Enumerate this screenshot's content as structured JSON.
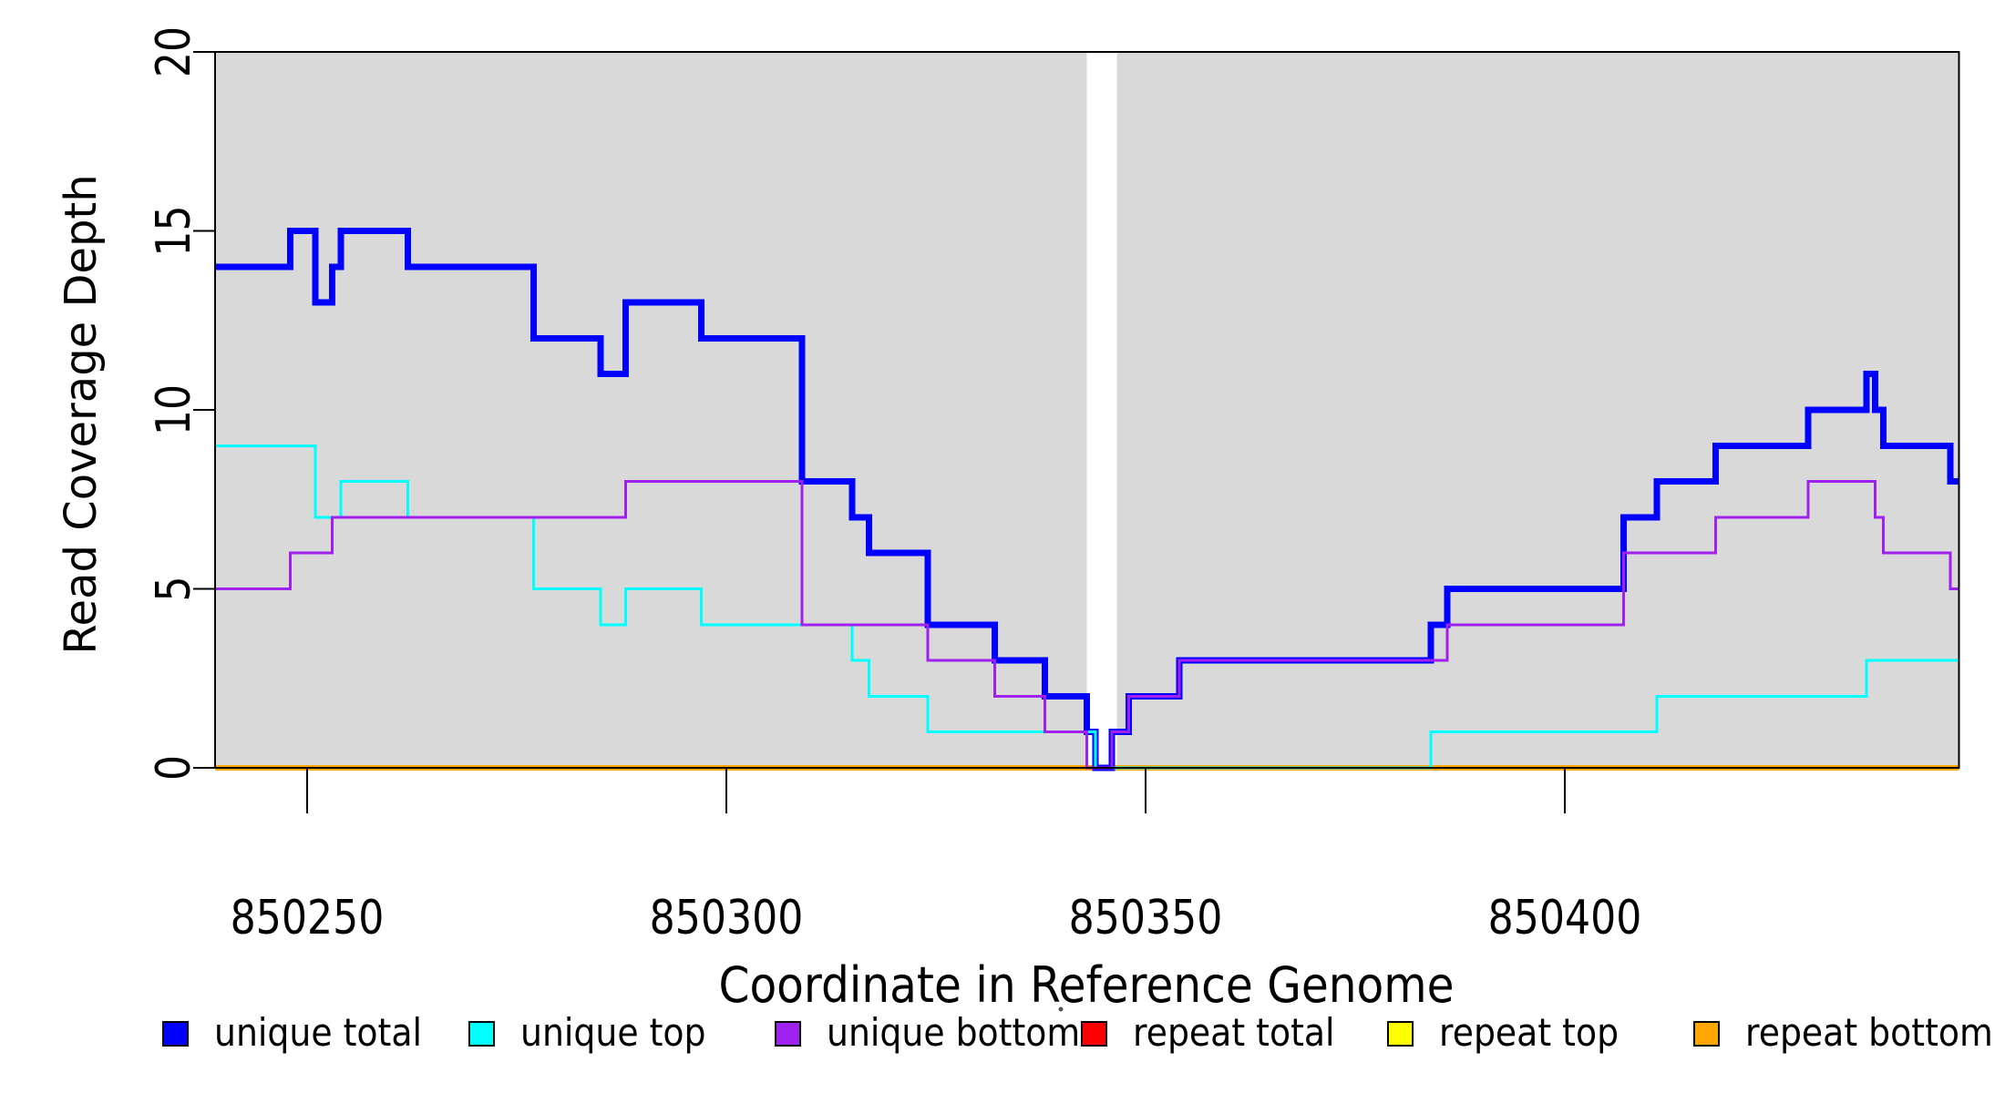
{
  "figure": {
    "background": "#ffffff",
    "plot_background": "#d9d9d9",
    "axis_color": "#000000",
    "gap_band": {
      "start": 850343,
      "end": 850346.6,
      "color": "#ffffff"
    },
    "x_axis": {
      "title": "Coordinate in Reference Genome",
      "ticks": [
        850250,
        850300,
        850350,
        850400
      ],
      "tick_labels": [
        "850250",
        "850300",
        "850350",
        "850400"
      ]
    },
    "y_axis": {
      "title": "Read Coverage Depth",
      "ticks": [
        0,
        5,
        10,
        15,
        20
      ],
      "tick_labels": [
        "0",
        "5",
        "10",
        "15",
        "20"
      ]
    }
  },
  "chart_data": {
    "type": "line",
    "step_mode": "post",
    "title": "",
    "xlabel": "Coordinate in Reference Genome",
    "ylabel": "Read Coverage Depth",
    "xlim": [
      850239,
      850447
    ],
    "ylim": [
      0,
      20
    ],
    "grid": false,
    "legend_position": "bottom",
    "series": [
      {
        "name": "repeat total",
        "slug": "repeat-total",
        "color": "#ff0000",
        "width": 4,
        "points": [
          [
            850239,
            0
          ]
        ]
      },
      {
        "name": "repeat top",
        "slug": "repeat-top",
        "color": "#ffff00",
        "width": 4,
        "points": [
          [
            850239,
            0
          ]
        ]
      },
      {
        "name": "repeat bottom",
        "slug": "repeat-bottom",
        "color": "#ffa500",
        "width": 6,
        "points": [
          [
            850239,
            0
          ]
        ]
      },
      {
        "name": "unique total",
        "slug": "unique-total",
        "color": "#0000ff",
        "width": 7,
        "points": [
          [
            850239,
            14
          ],
          [
            850248,
            15
          ],
          [
            850251,
            13
          ],
          [
            850253,
            14
          ],
          [
            850254,
            15
          ],
          [
            850262,
            14
          ],
          [
            850277,
            12
          ],
          [
            850285,
            11
          ],
          [
            850288,
            13
          ],
          [
            850297,
            12
          ],
          [
            850309,
            8
          ],
          [
            850315,
            7
          ],
          [
            850317,
            6
          ],
          [
            850324,
            4
          ],
          [
            850332,
            3
          ],
          [
            850338,
            2
          ],
          [
            850343,
            1
          ],
          [
            850344,
            0
          ],
          [
            850346,
            1
          ],
          [
            850348,
            2
          ],
          [
            850354,
            3
          ],
          [
            850384,
            4
          ],
          [
            850386,
            5
          ],
          [
            850407,
            7
          ],
          [
            850411,
            8
          ],
          [
            850418,
            9
          ],
          [
            850429,
            10
          ],
          [
            850436,
            11
          ],
          [
            850437,
            10
          ],
          [
            850438,
            9
          ],
          [
            850446,
            8
          ]
        ]
      },
      {
        "name": "unique top",
        "slug": "unique-top",
        "color": "#00ffff",
        "width": 3,
        "points": [
          [
            850239,
            9
          ],
          [
            850251,
            7
          ],
          [
            850254,
            8
          ],
          [
            850262,
            7
          ],
          [
            850277,
            5
          ],
          [
            850285,
            4
          ],
          [
            850288,
            5
          ],
          [
            850297,
            4
          ],
          [
            850315,
            3
          ],
          [
            850317,
            2
          ],
          [
            850324,
            1
          ],
          [
            850344,
            0
          ],
          [
            850384,
            1
          ],
          [
            850411,
            2
          ],
          [
            850436,
            3
          ]
        ]
      },
      {
        "name": "unique bottom",
        "slug": "unique-bottom",
        "color": "#a020f0",
        "width": 3,
        "points": [
          [
            850239,
            5
          ],
          [
            850248,
            6
          ],
          [
            850253,
            7
          ],
          [
            850288,
            8
          ],
          [
            850309,
            4
          ],
          [
            850324,
            3
          ],
          [
            850332,
            2
          ],
          [
            850338,
            1
          ],
          [
            850343,
            0
          ],
          [
            850346,
            1
          ],
          [
            850348,
            2
          ],
          [
            850354,
            3
          ],
          [
            850386,
            4
          ],
          [
            850407,
            6
          ],
          [
            850418,
            7
          ],
          [
            850429,
            8
          ],
          [
            850437,
            7
          ],
          [
            850438,
            6
          ],
          [
            850446,
            5
          ]
        ]
      }
    ],
    "legend": [
      {
        "label": "unique total",
        "slug": "unique-total",
        "color": "#0000ff"
      },
      {
        "label": "unique top",
        "slug": "unique-top",
        "color": "#00ffff"
      },
      {
        "label": "unique bottom",
        "slug": "unique-bottom",
        "color": "#a020f0"
      },
      {
        "label": "repeat total",
        "slug": "repeat-total",
        "color": "#ff0000"
      },
      {
        "label": "repeat top",
        "slug": "repeat-top",
        "color": "#ffff00"
      },
      {
        "label": "repeat bottom",
        "slug": "repeat-bottom",
        "color": "#ffa500"
      }
    ]
  }
}
